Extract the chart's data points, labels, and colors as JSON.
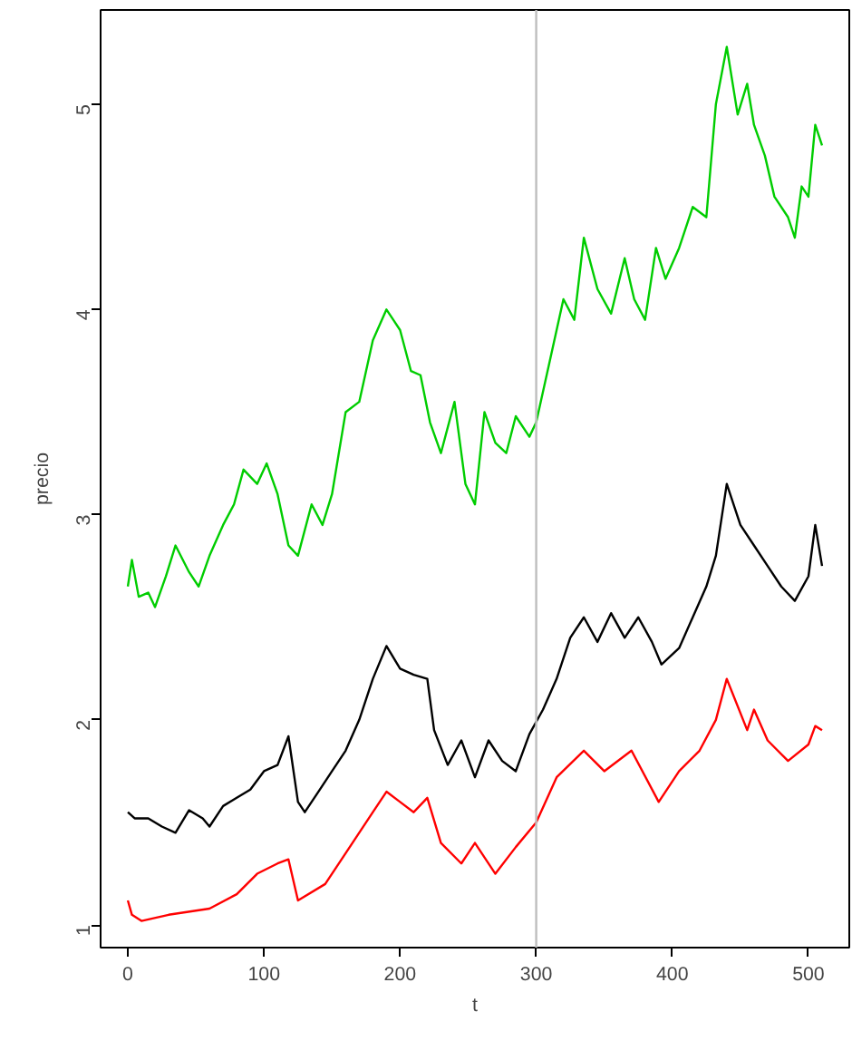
{
  "chart_data": {
    "type": "line",
    "xlabel": "t",
    "ylabel": "precio",
    "xlim": [
      -20,
      530
    ],
    "ylim": [
      0.89,
      5.46
    ],
    "xticks": [
      0,
      100,
      200,
      300,
      400,
      500
    ],
    "yticks": [
      1,
      2,
      3,
      4,
      5
    ],
    "grid": false,
    "marker": "none",
    "line_style": "solid",
    "ref_lines": [
      {
        "axis": "x",
        "value": 300,
        "color": "#bebebe"
      }
    ],
    "series": [
      {
        "color": "#00cd00",
        "x": [
          0,
          3,
          8,
          15,
          20,
          28,
          35,
          45,
          52,
          60,
          70,
          78,
          85,
          95,
          102,
          110,
          118,
          125,
          135,
          143,
          150,
          160,
          170,
          180,
          190,
          195,
          200,
          208,
          215,
          222,
          230,
          240,
          248,
          255,
          262,
          270,
          278,
          285,
          295,
          300,
          310,
          320,
          328,
          335,
          345,
          355,
          365,
          372,
          380,
          388,
          395,
          405,
          415,
          425,
          432,
          440,
          448,
          455,
          460,
          468,
          475,
          485,
          490,
          495,
          500,
          505,
          510
        ],
        "values": [
          2.65,
          2.78,
          2.6,
          2.62,
          2.55,
          2.7,
          2.85,
          2.72,
          2.65,
          2.8,
          2.95,
          3.05,
          3.22,
          3.15,
          3.25,
          3.1,
          2.85,
          2.8,
          3.05,
          2.95,
          3.1,
          3.5,
          3.55,
          3.85,
          4.0,
          3.95,
          3.9,
          3.7,
          3.68,
          3.45,
          3.3,
          3.55,
          3.15,
          3.05,
          3.5,
          3.35,
          3.3,
          3.48,
          3.38,
          3.45,
          3.75,
          4.05,
          3.95,
          4.35,
          4.1,
          3.98,
          4.25,
          4.05,
          3.95,
          4.3,
          4.15,
          4.3,
          4.5,
          4.45,
          5.0,
          5.28,
          4.95,
          5.1,
          4.9,
          4.75,
          4.55,
          4.45,
          4.35,
          4.6,
          4.55,
          4.9,
          4.8
        ]
      },
      {
        "color": "#000000",
        "x": [
          0,
          5,
          15,
          25,
          35,
          45,
          55,
          60,
          70,
          80,
          90,
          100,
          110,
          118,
          125,
          130,
          140,
          150,
          160,
          170,
          180,
          190,
          200,
          210,
          220,
          225,
          235,
          245,
          255,
          265,
          275,
          285,
          295,
          305,
          315,
          325,
          335,
          345,
          355,
          365,
          375,
          385,
          392,
          405,
          415,
          425,
          432,
          440,
          450,
          460,
          470,
          480,
          490,
          500,
          505,
          510
        ],
        "values": [
          1.55,
          1.52,
          1.52,
          1.48,
          1.45,
          1.56,
          1.52,
          1.48,
          1.58,
          1.62,
          1.66,
          1.75,
          1.78,
          1.92,
          1.6,
          1.55,
          1.65,
          1.75,
          1.85,
          2.0,
          2.2,
          2.36,
          2.25,
          2.22,
          2.2,
          1.95,
          1.78,
          1.9,
          1.72,
          1.9,
          1.8,
          1.75,
          1.93,
          2.05,
          2.2,
          2.4,
          2.5,
          2.38,
          2.52,
          2.4,
          2.5,
          2.38,
          2.27,
          2.35,
          2.5,
          2.65,
          2.8,
          3.15,
          2.95,
          2.85,
          2.75,
          2.65,
          2.58,
          2.7,
          2.95,
          2.75
        ]
      },
      {
        "color": "#ff0000",
        "x": [
          0,
          3,
          10,
          30,
          60,
          80,
          95,
          110,
          118,
          125,
          145,
          165,
          180,
          190,
          200,
          210,
          220,
          230,
          245,
          255,
          270,
          285,
          300,
          315,
          335,
          350,
          370,
          390,
          405,
          420,
          432,
          440,
          455,
          460,
          470,
          485,
          500,
          505,
          510
        ],
        "values": [
          1.12,
          1.05,
          1.02,
          1.05,
          1.08,
          1.15,
          1.25,
          1.3,
          1.32,
          1.12,
          1.2,
          1.4,
          1.55,
          1.65,
          1.6,
          1.55,
          1.62,
          1.4,
          1.3,
          1.4,
          1.25,
          1.38,
          1.5,
          1.72,
          1.85,
          1.75,
          1.85,
          1.6,
          1.75,
          1.85,
          2.0,
          2.2,
          1.95,
          2.05,
          1.9,
          1.8,
          1.88,
          1.97,
          1.95
        ]
      }
    ]
  }
}
